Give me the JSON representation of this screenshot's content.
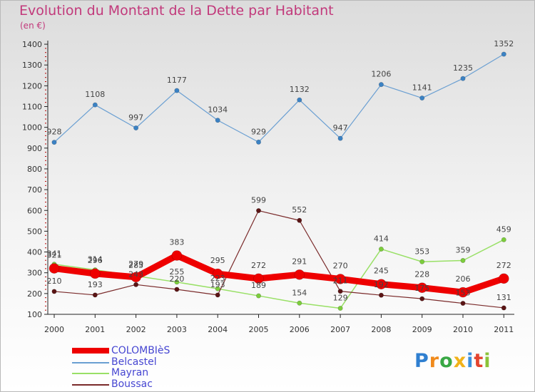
{
  "title": "Evolution du Montant de la Dette par Habitant",
  "subtitle": "(en €)",
  "brand": "Proxiti",
  "colors": {
    "COLOMBIèS": "#ee0000",
    "Belcastel": "#6a9fd2",
    "Mayran": "#99e066",
    "Boussac": "#7a2a2a",
    "Belcastel_marker": "#3b82c4",
    "Mayran_marker": "#7ccd3c",
    "Boussac_marker": "#5a1414",
    "title": "#c2397b",
    "legend_text": "#4646d2"
  },
  "chart_data": {
    "type": "line",
    "title": "Evolution du Montant de la Dette par Habitant",
    "subtitle": "(en €)",
    "xlabel": "",
    "ylabel": "",
    "x": [
      "2000",
      "2001",
      "2002",
      "2003",
      "2004",
      "2005",
      "2006",
      "2007",
      "2008",
      "2009",
      "2010",
      "2011"
    ],
    "ylim": [
      100,
      1400
    ],
    "yticks": [
      100,
      200,
      300,
      400,
      500,
      600,
      700,
      800,
      900,
      1000,
      1100,
      1200,
      1300,
      1400
    ],
    "grid": false,
    "legend_position": "bottom-left",
    "series": [
      {
        "name": "COLOMBIèS",
        "values": [
          321,
          296,
          279,
          383,
          295,
          272,
          291,
          270,
          245,
          228,
          206,
          272
        ]
      },
      {
        "name": "Belcastel",
        "values": [
          928,
          1108,
          997,
          1177,
          1034,
          929,
          1132,
          947,
          1206,
          1141,
          1235,
          1352
        ]
      },
      {
        "name": "Mayran",
        "values": [
          341,
          314,
          285,
          255,
          223,
          189,
          154,
          129,
          414,
          353,
          359,
          459
        ]
      },
      {
        "name": "Boussac",
        "values": [
          210,
          193,
          243,
          220,
          193,
          599,
          552,
          211,
          192,
          175,
          153,
          131
        ]
      }
    ]
  }
}
